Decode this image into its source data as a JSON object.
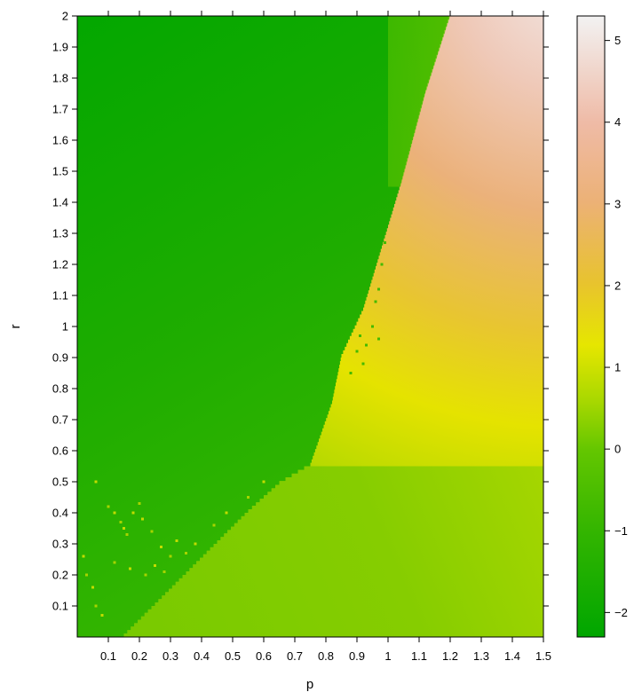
{
  "chart_data": {
    "type": "heatmap",
    "xlabel": "p",
    "ylabel": "r",
    "xlim": [
      0.0,
      1.5
    ],
    "ylim": [
      0.0,
      2.0
    ],
    "x_ticks": [
      "0.1",
      "0.2",
      "0.3",
      "0.4",
      "0.5",
      "0.6",
      "0.7",
      "0.8",
      "0.9",
      "1",
      "1.1",
      "1.2",
      "1.3",
      "1.4",
      "1.5"
    ],
    "y_ticks": [
      "0.1",
      "0.2",
      "0.3",
      "0.4",
      "0.5",
      "0.6",
      "0.7",
      "0.8",
      "0.9",
      "1",
      "1.1",
      "1.2",
      "1.3",
      "1.4",
      "1.5",
      "1.6",
      "1.7",
      "1.8",
      "1.9",
      "2"
    ],
    "colorbar": {
      "range": [
        -2.3,
        5.3
      ],
      "ticks": [
        "−2",
        "−1",
        "0",
        "1",
        "2",
        "3",
        "4",
        "5"
      ],
      "stops": [
        {
          "value": -2.3,
          "color": "#00a600"
        },
        {
          "value": -1.0,
          "color": "#33b500"
        },
        {
          "value": 0.0,
          "color": "#63c600"
        },
        {
          "value": 0.6,
          "color": "#a8d800"
        },
        {
          "value": 1.3,
          "color": "#e6e600"
        },
        {
          "value": 2.0,
          "color": "#e8c32e"
        },
        {
          "value": 3.0,
          "color": "#ecb176"
        },
        {
          "value": 4.0,
          "color": "#efbba7"
        },
        {
          "value": 5.3,
          "color": "#f2f2f2"
        }
      ]
    },
    "boundary": {
      "description_values_r_vs_p": [
        [
          0.15,
          0.0
        ],
        [
          0.35,
          0.2
        ],
        [
          0.55,
          0.4
        ],
        [
          0.65,
          0.49
        ],
        [
          0.75,
          0.55
        ],
        [
          0.82,
          0.75
        ],
        [
          0.85,
          0.9
        ],
        [
          0.92,
          1.05
        ],
        [
          0.98,
          1.25
        ],
        [
          1.04,
          1.45
        ],
        [
          1.12,
          1.75
        ],
        [
          1.2,
          2.0
        ]
      ],
      "left_region_value_at_top_left": -2.3,
      "left_region_value_near_boundary": -1.0,
      "right_region_lower_value": 0.0,
      "right_region_peak_value": 5.3
    }
  }
}
